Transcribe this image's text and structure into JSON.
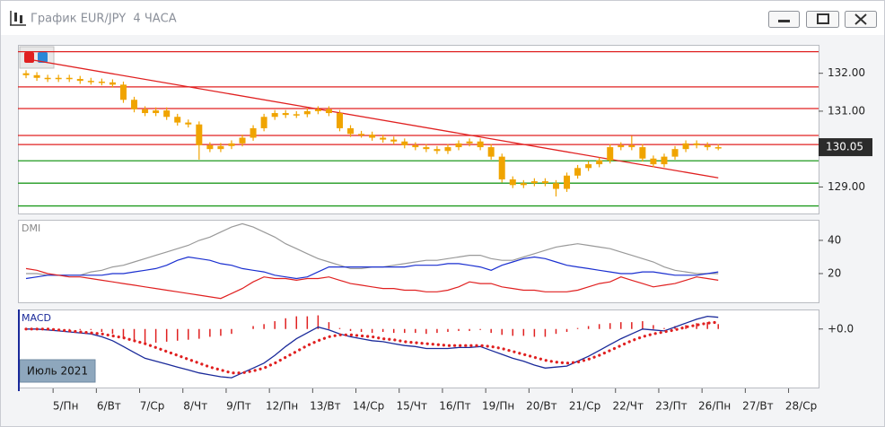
{
  "chart_data": {
    "type": "candlestick",
    "title": "График EUR/JPY  4 ЧАСА",
    "period_label": "Июль 2021",
    "categories": [
      null,
      null,
      null,
      "5/Пн",
      null,
      null,
      null,
      "6/Вт",
      null,
      null,
      null,
      "7/Ср",
      null,
      null,
      null,
      "8/Чт",
      null,
      null,
      null,
      "9/Пт",
      null,
      null,
      null,
      "12/Пн",
      null,
      null,
      null,
      "13/Вт",
      null,
      null,
      null,
      "14/Ср",
      null,
      null,
      null,
      "15/Чт",
      null,
      null,
      null,
      "16/Пт",
      null,
      null,
      null,
      "19/Пн",
      null,
      null,
      null,
      "20/Вт",
      null,
      null,
      null,
      "21/Ср",
      null,
      null,
      null,
      "22/Чт",
      null,
      null,
      null,
      "23/Пт",
      null,
      null,
      null,
      "26/Пн",
      null,
      null,
      null,
      "27/Вт",
      null,
      null,
      null,
      "28/Ср",
      null
    ],
    "open": [
      132.0,
      131.95,
      131.88,
      131.85,
      131.88,
      131.85,
      131.8,
      131.78,
      131.76,
      131.7,
      131.3,
      131.05,
      130.95,
      131.02,
      130.85,
      130.7,
      130.65,
      130.1,
      130.0,
      130.08,
      130.15,
      130.3,
      130.55,
      130.85,
      130.95,
      130.9,
      130.92,
      131.0,
      131.05,
      130.95,
      130.55,
      130.4,
      130.38,
      130.3,
      130.25,
      130.2,
      130.1,
      130.05,
      130.0,
      129.95,
      130.05,
      130.15,
      130.2,
      130.05,
      129.8,
      129.2,
      129.05,
      129.1,
      129.15,
      129.1,
      128.95,
      129.3,
      129.5,
      129.6,
      129.7,
      130.05,
      130.1,
      130.05,
      129.75,
      129.6,
      129.8,
      130.0,
      130.15,
      130.1,
      130.05,
      null,
      null,
      null,
      null,
      null,
      null,
      null,
      null
    ],
    "high": [
      132.08,
      132.03,
      131.96,
      131.96,
      131.96,
      131.93,
      131.88,
      131.86,
      131.84,
      131.78,
      131.38,
      131.13,
      131.1,
      131.1,
      130.93,
      130.78,
      130.73,
      130.18,
      130.16,
      130.23,
      130.38,
      130.63,
      130.93,
      131.03,
      131.03,
      131.0,
      131.08,
      131.13,
      131.13,
      131.03,
      130.63,
      130.48,
      130.46,
      130.38,
      130.33,
      130.28,
      130.18,
      130.13,
      130.08,
      130.13,
      130.23,
      130.28,
      130.28,
      130.13,
      129.88,
      129.28,
      129.18,
      129.23,
      129.23,
      129.18,
      129.38,
      129.58,
      129.68,
      129.78,
      130.13,
      130.18,
      130.35,
      130.13,
      129.83,
      129.88,
      130.08,
      130.23,
      130.23,
      130.18,
      130.13,
      null,
      null,
      null,
      null,
      null,
      null,
      null,
      null
    ],
    "low": [
      131.87,
      131.8,
      131.77,
      131.77,
      131.77,
      131.72,
      131.7,
      131.68,
      131.62,
      131.22,
      130.97,
      130.87,
      130.87,
      130.77,
      130.62,
      130.57,
      129.72,
      129.92,
      129.92,
      130.0,
      130.07,
      130.22,
      130.47,
      130.77,
      130.82,
      130.82,
      130.84,
      130.92,
      130.87,
      130.47,
      130.32,
      130.3,
      130.22,
      130.17,
      130.12,
      130.02,
      129.97,
      129.92,
      129.87,
      129.87,
      129.97,
      130.07,
      129.97,
      129.72,
      129.12,
      128.97,
      128.97,
      129.02,
      129.02,
      128.75,
      128.87,
      129.22,
      129.42,
      129.52,
      129.62,
      129.97,
      129.97,
      129.67,
      129.52,
      129.52,
      129.72,
      129.92,
      130.02,
      129.97,
      129.97,
      null,
      null,
      null,
      null,
      null,
      null,
      null,
      null
    ],
    "close": [
      131.95,
      131.88,
      131.85,
      131.88,
      131.85,
      131.8,
      131.78,
      131.76,
      131.7,
      131.3,
      131.05,
      130.95,
      131.02,
      130.85,
      130.7,
      130.65,
      130.1,
      130.0,
      130.08,
      130.15,
      130.3,
      130.55,
      130.85,
      130.95,
      130.9,
      130.92,
      131.0,
      131.05,
      130.95,
      130.55,
      130.4,
      130.38,
      130.3,
      130.25,
      130.2,
      130.1,
      130.05,
      130.0,
      129.95,
      130.05,
      130.15,
      130.2,
      130.05,
      129.8,
      129.2,
      129.05,
      129.1,
      129.15,
      129.1,
      128.95,
      129.3,
      129.5,
      129.6,
      129.7,
      130.05,
      130.1,
      130.05,
      129.75,
      129.6,
      129.8,
      130.0,
      130.15,
      130.1,
      130.05,
      130.05,
      null,
      null,
      null,
      null,
      null,
      null,
      null,
      null
    ],
    "color": "#f0a400",
    "ylim": [
      128.3,
      132.75
    ],
    "yticks": [
      {
        "value": 129,
        "label": "129.00"
      },
      {
        "value": 131,
        "label": "131.00"
      },
      {
        "value": 132,
        "label": "132.00"
      }
    ],
    "last_price": 130.05,
    "levels": [
      {
        "value": 132.57,
        "color": "#e02020"
      },
      {
        "value": 131.64,
        "color": "#e02020"
      },
      {
        "value": 131.07,
        "color": "#e02020"
      },
      {
        "value": 130.36,
        "color": "#e02020"
      },
      {
        "value": 130.12,
        "color": "#e02020"
      },
      {
        "value": 129.69,
        "color": "#1f9a1f"
      },
      {
        "value": 129.1,
        "color": "#1f9a1f"
      },
      {
        "value": 128.5,
        "color": "#1f9a1f"
      }
    ],
    "trendline": {
      "x": [
        0,
        64
      ],
      "y": [
        132.38,
        129.24
      ],
      "color": "#e02020"
    },
    "panels": [
      {
        "type": "line",
        "title": "DMI",
        "ylim": [
          2.7,
          52.4
        ],
        "yticks": [
          20,
          40
        ],
        "series": [
          {
            "color": "#999999",
            "values": [
              20,
              20,
              19,
              19,
              19,
              19,
              21,
              22,
              24,
              25,
              27,
              29,
              31,
              33,
              35,
              37,
              40,
              42,
              45,
              48,
              50,
              48,
              45,
              42,
              38,
              35,
              32,
              29,
              27,
              25,
              23,
              23,
              24,
              24,
              25,
              26,
              27,
              28,
              28,
              29,
              30,
              31,
              31,
              29,
              28,
              28,
              30,
              32,
              34,
              36,
              37,
              38,
              37,
              36,
              35,
              33,
              31,
              29,
              27,
              24,
              22,
              21,
              20,
              20,
              20,
              null,
              null,
              null,
              null,
              null,
              null,
              null,
              null
            ]
          },
          {
            "color": "#1a2fd0",
            "values": [
              17,
              18,
              19,
              19,
              19,
              19,
              19,
              19,
              20,
              20,
              21,
              22,
              23,
              25,
              28,
              30,
              29,
              28,
              26,
              25,
              23,
              22,
              21,
              19,
              18,
              17,
              18,
              21,
              24,
              24,
              24,
              24,
              24,
              24,
              24,
              24,
              25,
              25,
              25,
              26,
              26,
              25,
              24,
              22,
              25,
              27,
              29,
              30,
              29,
              27,
              25,
              24,
              23,
              22,
              21,
              20,
              20,
              21,
              21,
              20,
              19,
              19,
              19,
              20,
              21,
              null,
              null,
              null,
              null,
              null,
              null,
              null,
              null
            ]
          },
          {
            "color": "#e02020",
            "values": [
              23,
              22,
              20,
              19,
              18,
              18,
              17,
              16,
              15,
              14,
              13,
              12,
              11,
              10,
              9,
              8,
              7,
              6,
              5,
              8,
              11,
              15,
              18,
              17,
              17,
              16,
              17,
              17,
              18,
              16,
              14,
              13,
              12,
              11,
              11,
              10,
              10,
              9,
              9,
              10,
              12,
              15,
              14,
              14,
              12,
              11,
              10,
              10,
              9,
              9,
              9,
              10,
              12,
              14,
              15,
              18,
              16,
              14,
              12,
              13,
              14,
              16,
              18,
              17,
              16,
              null,
              null,
              null,
              null,
              null,
              null,
              null,
              null
            ]
          }
        ]
      },
      {
        "type": "macd",
        "title": "MACD",
        "ylim": [
          -0.6,
          0.2
        ],
        "yticks": [
          {
            "value": 0,
            "label": "+0.0"
          }
        ],
        "series": [
          {
            "style": "histogram",
            "color": "#e02020",
            "values": [
              0,
              0,
              -0.01,
              -0.01,
              -0.01,
              -0.01,
              -0.01,
              -0.03,
              -0.05,
              -0.09,
              -0.12,
              -0.15,
              -0.14,
              -0.13,
              -0.12,
              -0.11,
              -0.1,
              -0.08,
              -0.07,
              -0.05,
              0.0,
              0.03,
              0.05,
              0.08,
              0.11,
              0.13,
              0.13,
              0.14,
              0.07,
              0.01,
              -0.02,
              -0.03,
              -0.04,
              -0.03,
              -0.04,
              -0.04,
              -0.04,
              -0.05,
              -0.04,
              -0.03,
              -0.02,
              -0.02,
              -0.01,
              -0.04,
              -0.06,
              -0.07,
              -0.07,
              -0.08,
              -0.08,
              -0.05,
              -0.03,
              0.01,
              0.03,
              0.05,
              0.06,
              0.07,
              0.07,
              0.08,
              0.04,
              0.01,
              0.03,
              0.04,
              0.06,
              0.07,
              0.05,
              null,
              null,
              null,
              null,
              null,
              null,
              null,
              null
            ]
          },
          {
            "style": "line",
            "color": "#1a2a9a",
            "values": [
              0.0,
              0.0,
              -0.01,
              -0.02,
              -0.03,
              -0.04,
              -0.05,
              -0.08,
              -0.12,
              -0.18,
              -0.24,
              -0.3,
              -0.33,
              -0.36,
              -0.39,
              -0.42,
              -0.45,
              -0.47,
              -0.49,
              -0.5,
              -0.45,
              -0.4,
              -0.35,
              -0.27,
              -0.18,
              -0.1,
              -0.04,
              0.02,
              -0.01,
              -0.05,
              -0.08,
              -0.1,
              -0.12,
              -0.13,
              -0.15,
              -0.17,
              -0.18,
              -0.2,
              -0.2,
              -0.2,
              -0.19,
              -0.19,
              -0.18,
              -0.22,
              -0.26,
              -0.3,
              -0.33,
              -0.37,
              -0.4,
              -0.39,
              -0.38,
              -0.33,
              -0.28,
              -0.22,
              -0.16,
              -0.1,
              -0.05,
              0.0,
              -0.01,
              -0.02,
              0.02,
              0.06,
              0.1,
              0.13,
              0.12,
              null,
              null,
              null,
              null,
              null,
              null,
              null,
              null
            ]
          },
          {
            "style": "dots",
            "color": "#e02020",
            "values": [
              0.0,
              0.0,
              0.0,
              -0.01,
              -0.02,
              -0.03,
              -0.04,
              -0.05,
              -0.07,
              -0.09,
              -0.12,
              -0.15,
              -0.19,
              -0.23,
              -0.27,
              -0.31,
              -0.35,
              -0.39,
              -0.42,
              -0.45,
              -0.45,
              -0.43,
              -0.4,
              -0.35,
              -0.29,
              -0.23,
              -0.17,
              -0.12,
              -0.08,
              -0.06,
              -0.06,
              -0.07,
              -0.08,
              -0.1,
              -0.11,
              -0.13,
              -0.14,
              -0.15,
              -0.16,
              -0.17,
              -0.17,
              -0.17,
              -0.17,
              -0.18,
              -0.2,
              -0.23,
              -0.26,
              -0.29,
              -0.32,
              -0.34,
              -0.35,
              -0.34,
              -0.31,
              -0.27,
              -0.22,
              -0.17,
              -0.12,
              -0.08,
              -0.05,
              -0.03,
              -0.01,
              0.02,
              0.04,
              0.06,
              0.07,
              null,
              null,
              null,
              null,
              null,
              null,
              null,
              null
            ]
          }
        ]
      }
    ]
  }
}
